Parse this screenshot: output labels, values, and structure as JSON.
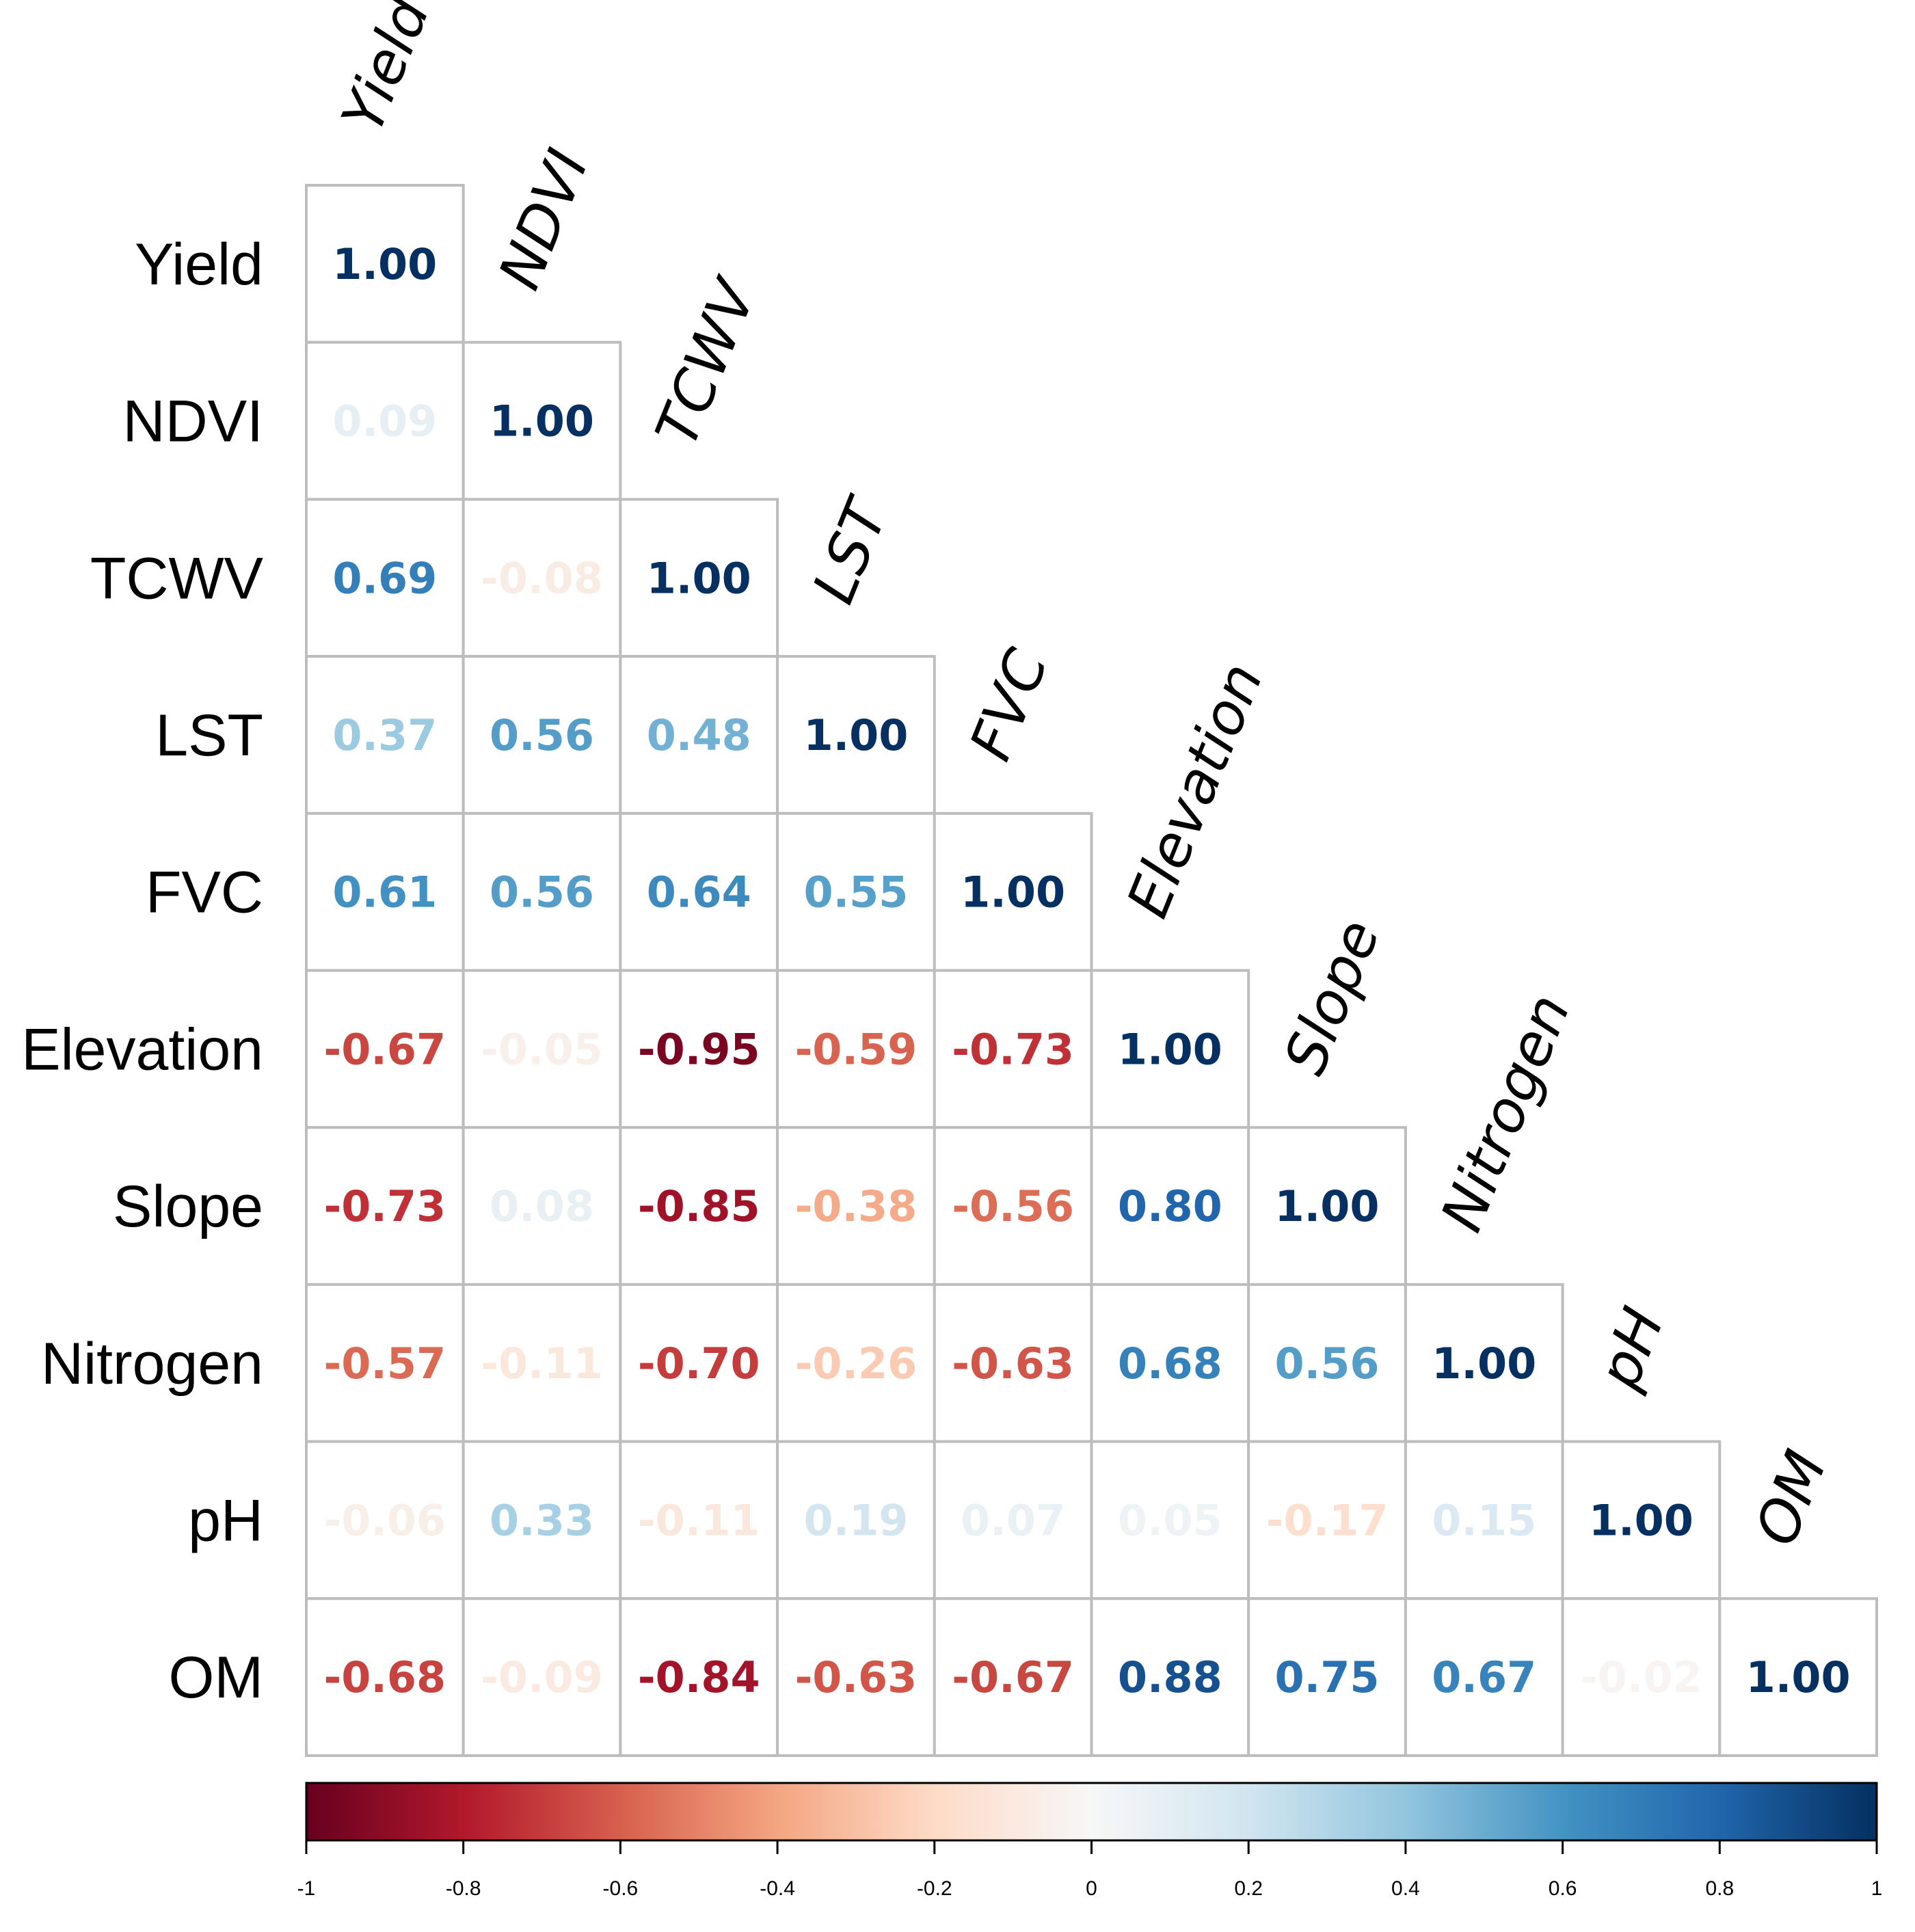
{
  "chart_data": {
    "type": "heatmap",
    "title": "",
    "variables": [
      "Yield",
      "NDVI",
      "TCWV",
      "LST",
      "FVC",
      "Elevation",
      "Slope",
      "Nitrogen",
      "pH",
      "OM"
    ],
    "matrix_lower": [
      [
        1.0
      ],
      [
        0.09,
        1.0
      ],
      [
        0.69,
        -0.08,
        1.0
      ],
      [
        0.37,
        0.56,
        0.48,
        1.0
      ],
      [
        0.61,
        0.56,
        0.64,
        0.55,
        1.0
      ],
      [
        -0.67,
        -0.05,
        -0.95,
        -0.59,
        -0.73,
        1.0
      ],
      [
        -0.73,
        0.08,
        -0.85,
        -0.38,
        -0.56,
        0.8,
        1.0
      ],
      [
        -0.57,
        -0.11,
        -0.7,
        -0.26,
        -0.63,
        0.68,
        0.56,
        1.0
      ],
      [
        -0.06,
        0.33,
        -0.11,
        0.19,
        0.07,
        0.05,
        -0.17,
        0.15,
        1.0
      ],
      [
        -0.68,
        -0.09,
        -0.84,
        -0.63,
        -0.67,
        0.88,
        0.75,
        0.67,
        -0.02,
        1.0
      ]
    ],
    "colorbar": {
      "range": [
        -1,
        1
      ],
      "ticks": [
        "-1",
        "-0.8",
        "-0.6",
        "-0.4",
        "-0.2",
        "0",
        "0.2",
        "0.4",
        "0.6",
        "0.8",
        "1"
      ],
      "colormap_stops": [
        [
          -1,
          "#67001F"
        ],
        [
          -0.8,
          "#B2182B"
        ],
        [
          -0.6,
          "#D6604D"
        ],
        [
          -0.4,
          "#F4A582"
        ],
        [
          -0.2,
          "#FDDBC7"
        ],
        [
          0,
          "#F7F7F7"
        ],
        [
          0.2,
          "#D1E5F0"
        ],
        [
          0.4,
          "#92C5DE"
        ],
        [
          0.6,
          "#4393C3"
        ],
        [
          0.8,
          "#2166AC"
        ],
        [
          1,
          "#053061"
        ]
      ],
      "placement": "bottom"
    },
    "grid": true
  }
}
